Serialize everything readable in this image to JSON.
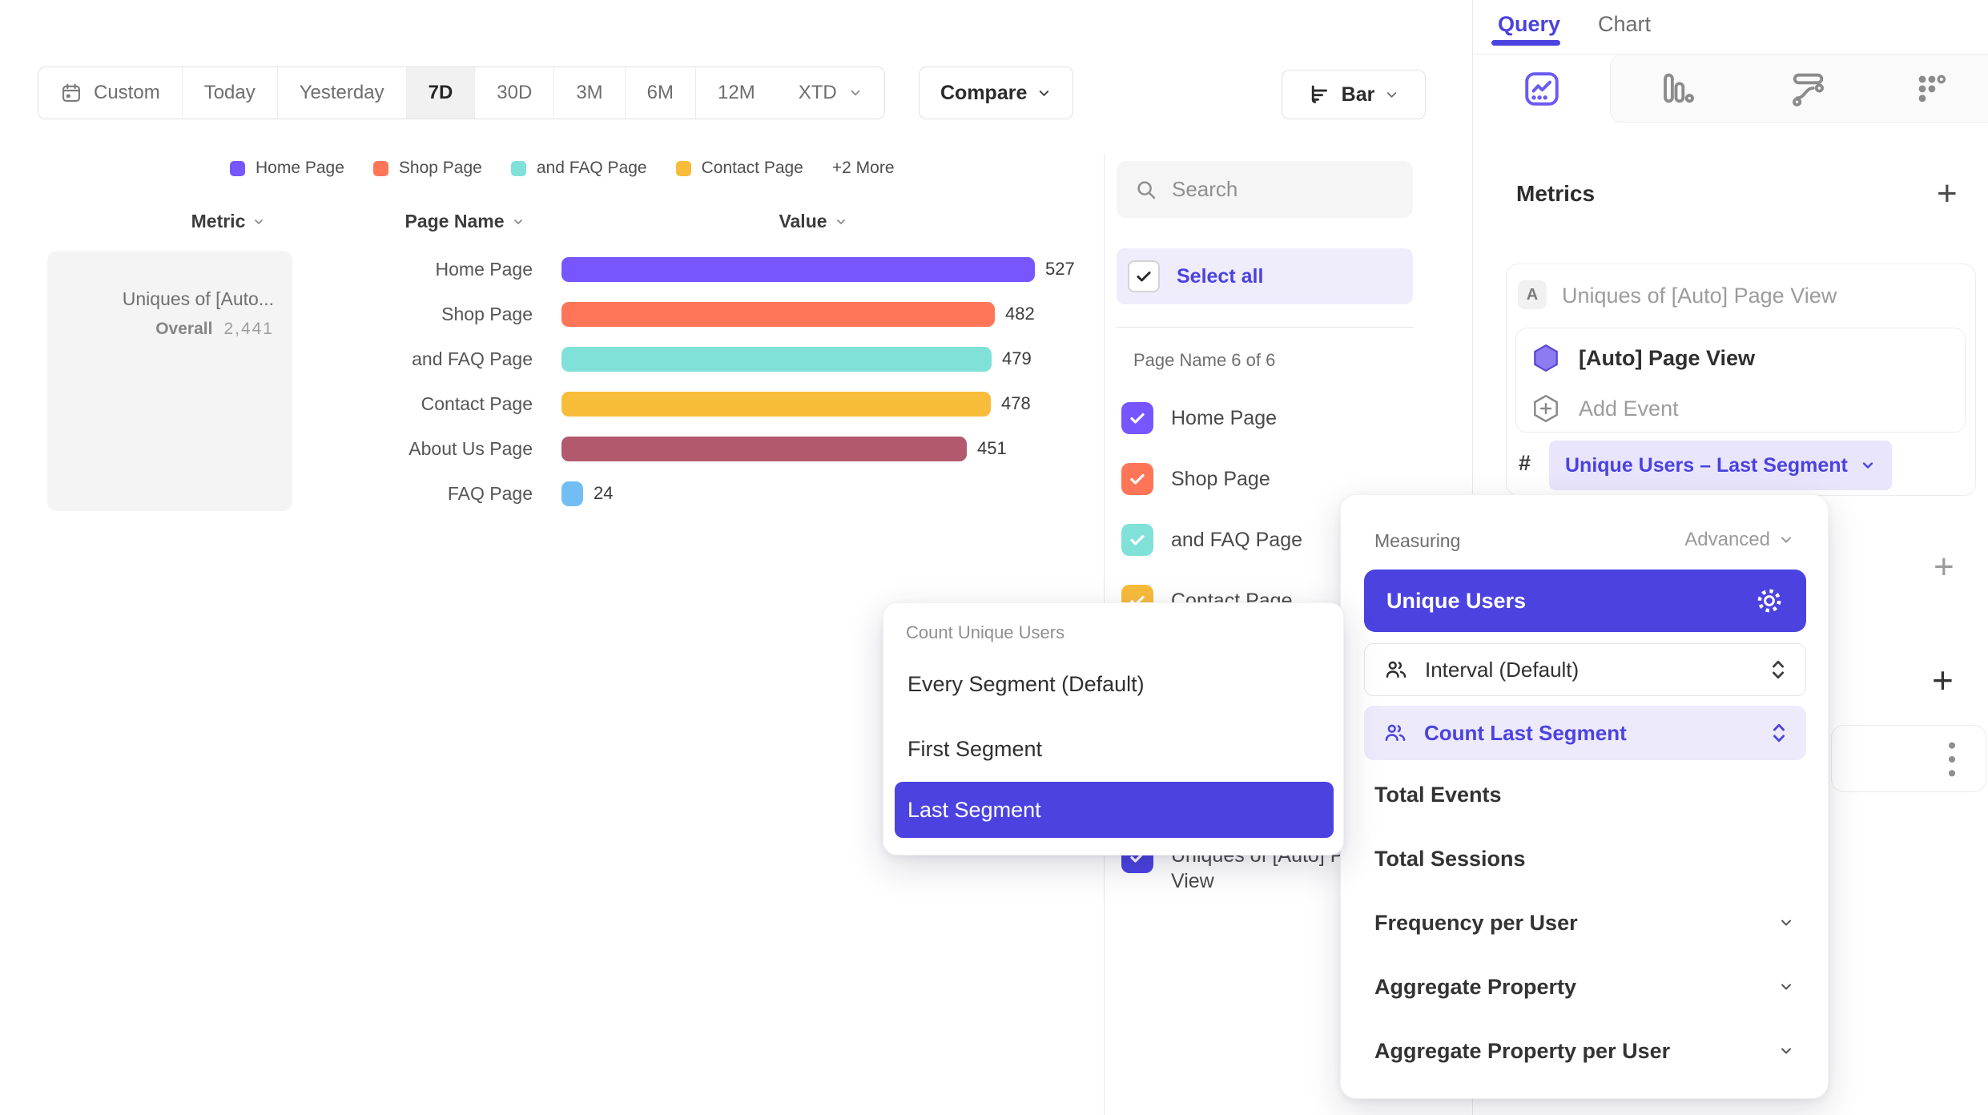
{
  "colors": {
    "accent": "#4b42e0",
    "accent_soft": "#eceafb",
    "palette": [
      "#7856FF",
      "#FF7557",
      "#80E1D9",
      "#F8BC3B",
      "#B2596E",
      "#72BEF4"
    ]
  },
  "date_bar": {
    "custom_label": "Custom",
    "presets": [
      "Today",
      "Yesterday",
      "7D",
      "30D",
      "3M",
      "6M",
      "12M"
    ],
    "selected": "7D",
    "xtd_label": "XTD",
    "compare_label": "Compare"
  },
  "chart_type_button": {
    "label": "Bar"
  },
  "legend": {
    "items": [
      {
        "label": "Home Page",
        "color": "#7856FF"
      },
      {
        "label": "Shop Page",
        "color": "#FF7557"
      },
      {
        "label": "and FAQ Page",
        "color": "#80E1D9"
      },
      {
        "label": "Contact Page",
        "color": "#F8BC3B"
      }
    ],
    "more_label": "+2 More"
  },
  "table": {
    "headers": [
      "Metric",
      "Page Name",
      "Value"
    ]
  },
  "metric_summary": {
    "title": "Uniques of [Auto...",
    "overall_label": "Overall",
    "overall_value": "2,441"
  },
  "chart_data": {
    "type": "bar",
    "orientation": "horizontal",
    "title": "Uniques of [Auto] Page View",
    "categories": [
      "Home Page",
      "Shop Page",
      "and FAQ Page",
      "Contact Page",
      "About Us Page",
      "FAQ Page"
    ],
    "values": [
      527,
      482,
      479,
      478,
      451,
      24
    ],
    "colors": [
      "#7856FF",
      "#FF7557",
      "#80E1D9",
      "#F8BC3B",
      "#B2596E",
      "#72BEF4"
    ],
    "max": 527,
    "overall_total": 2441,
    "legend_position": "top"
  },
  "filter_panel": {
    "search_placeholder": "Search",
    "select_all_label": "Select all",
    "group_label": "Page Name 6 of 6",
    "items": [
      {
        "label": "Home Page",
        "color": "#7856FF",
        "checked": true
      },
      {
        "label": "Shop Page",
        "color": "#FF7557",
        "checked": true
      },
      {
        "label": "and FAQ Page",
        "color": "#80E1D9",
        "checked": true
      },
      {
        "label": "Contact Page",
        "color": "#F8BC3B",
        "checked": true
      }
    ],
    "metric_item": {
      "label": "Uniques of [Auto] Page View",
      "color": "#4b42e0",
      "checked": true
    }
  },
  "sidebar": {
    "tabs": {
      "query": "Query",
      "chart": "Chart",
      "active": "Query"
    },
    "metrics_title": "Metrics",
    "metric_card": {
      "badge": "A",
      "title": "Uniques of [Auto] Page View",
      "event_label": "[Auto] Page View",
      "add_event_label": "Add Event",
      "hash": "#",
      "measurement_pill": "Unique Users – Last Segment"
    }
  },
  "measuring_popup": {
    "title": "Measuring",
    "advanced_label": "Advanced",
    "primary_label": "Unique Users",
    "control_rows": [
      {
        "label": "Interval (Default)",
        "active": false
      },
      {
        "label": "Count Last Segment",
        "active": true
      }
    ],
    "options": [
      {
        "label": "Total Events",
        "expandable": false
      },
      {
        "label": "Total Sessions",
        "expandable": false
      },
      {
        "label": "Frequency per User",
        "expandable": true
      },
      {
        "label": "Aggregate Property",
        "expandable": true
      },
      {
        "label": "Aggregate Property per User",
        "expandable": true
      }
    ]
  },
  "segment_popup": {
    "title": "Count Unique Users",
    "options": [
      "Every Segment (Default)",
      "First Segment",
      "Last Segment"
    ],
    "selected": "Last Segment"
  }
}
